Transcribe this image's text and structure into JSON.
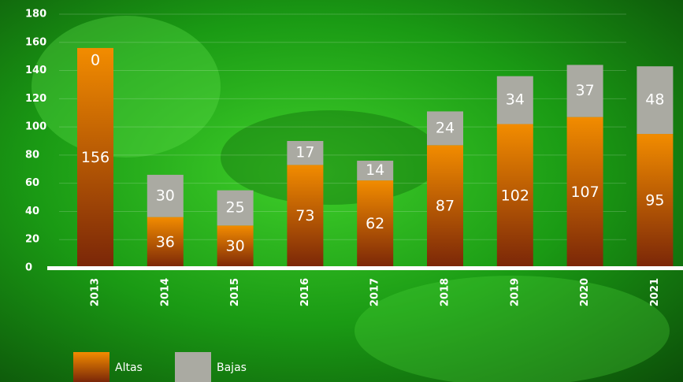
{
  "chart_data": {
    "type": "stacked_bar",
    "categories": [
      "2013",
      "2014",
      "2015",
      "2016",
      "2017",
      "2018",
      "2019",
      "2020",
      "2021"
    ],
    "series": [
      {
        "name": "Altas",
        "color": "#f28c00",
        "values": [
          156,
          36,
          30,
          73,
          62,
          87,
          102,
          107,
          95
        ]
      },
      {
        "name": "Bajas",
        "color": "#aaaaa2",
        "values": [
          0,
          30,
          25,
          17,
          14,
          24,
          34,
          37,
          48
        ]
      }
    ],
    "ylim": [
      0,
      180
    ],
    "yticks": [
      0,
      20,
      40,
      60,
      80,
      100,
      120,
      140,
      160,
      180
    ],
    "grid": true
  }
}
